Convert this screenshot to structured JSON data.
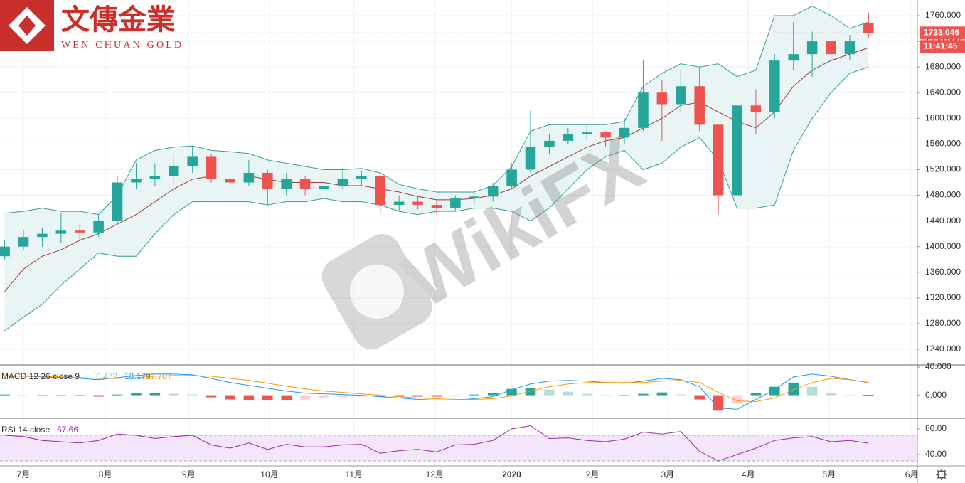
{
  "logo": {
    "name": "文傳金業",
    "subtitle": "WEN CHUAN GOLD"
  },
  "watermark": "WikiFX",
  "chart_data": [
    {
      "type": "candlestick",
      "x": [
        -1,
        0,
        1,
        2,
        3,
        4,
        5,
        6,
        7,
        8,
        9,
        10,
        11,
        12,
        13,
        14,
        15,
        16,
        17,
        18,
        19,
        20,
        21,
        22,
        23,
        24,
        25,
        26,
        27,
        28,
        29,
        30,
        31,
        32,
        33,
        34,
        35,
        36,
        37,
        38,
        39,
        40,
        41,
        42,
        43,
        44,
        45
      ],
      "open": [
        1385,
        1400,
        1415,
        1420,
        1425,
        1422,
        1440,
        1500,
        1505,
        1510,
        1525,
        1540,
        1505,
        1500,
        1515,
        1490,
        1505,
        1490,
        1495,
        1505,
        1510,
        1465,
        1470,
        1465,
        1460,
        1475,
        1478,
        1495,
        1520,
        1555,
        1565,
        1575,
        1578,
        1570,
        1585,
        1640,
        1622,
        1650,
        1590,
        1480,
        1620,
        1610,
        1690,
        1700,
        1720,
        1700,
        1748
      ],
      "high": [
        1410,
        1425,
        1430,
        1452,
        1435,
        1450,
        1510,
        1530,
        1530,
        1545,
        1557,
        1545,
        1515,
        1535,
        1520,
        1515,
        1510,
        1505,
        1520,
        1518,
        1512,
        1480,
        1478,
        1472,
        1480,
        1485,
        1500,
        1530,
        1612,
        1575,
        1585,
        1590,
        1580,
        1600,
        1690,
        1660,
        1675,
        1680,
        1590,
        1630,
        1645,
        1700,
        1750,
        1735,
        1725,
        1730,
        1765
      ],
      "low": [
        1380,
        1395,
        1400,
        1405,
        1410,
        1415,
        1435,
        1490,
        1495,
        1500,
        1515,
        1500,
        1480,
        1495,
        1465,
        1480,
        1480,
        1485,
        1490,
        1495,
        1450,
        1455,
        1458,
        1450,
        1455,
        1465,
        1470,
        1490,
        1515,
        1545,
        1560,
        1565,
        1555,
        1560,
        1580,
        1565,
        1610,
        1580,
        1450,
        1455,
        1575,
        1600,
        1675,
        1665,
        1680,
        1690,
        1725
      ],
      "close": [
        1400,
        1415,
        1420,
        1425,
        1422,
        1440,
        1500,
        1505,
        1510,
        1525,
        1540,
        1505,
        1500,
        1515,
        1490,
        1505,
        1490,
        1495,
        1505,
        1510,
        1465,
        1470,
        1465,
        1460,
        1475,
        1478,
        1495,
        1520,
        1555,
        1565,
        1575,
        1578,
        1570,
        1585,
        1640,
        1622,
        1650,
        1590,
        1480,
        1620,
        1610,
        1690,
        1700,
        1720,
        1700,
        1720,
        1733.046
      ],
      "bands": {
        "upper": [
          1452,
          1455,
          1460,
          1455,
          1455,
          1450,
          1480,
          1535,
          1550,
          1555,
          1557,
          1550,
          1548,
          1545,
          1535,
          1530,
          1525,
          1520,
          1520,
          1522,
          1515,
          1497,
          1490,
          1485,
          1485,
          1485,
          1495,
          1525,
          1580,
          1590,
          1590,
          1590,
          1590,
          1595,
          1650,
          1670,
          1685,
          1680,
          1685,
          1665,
          1675,
          1760,
          1760,
          1775,
          1760,
          1740,
          1750
        ],
        "middle": [
          1330,
          1365,
          1385,
          1395,
          1410,
          1420,
          1435,
          1450,
          1470,
          1490,
          1505,
          1510,
          1510,
          1510,
          1505,
          1500,
          1500,
          1500,
          1495,
          1495,
          1490,
          1485,
          1478,
          1473,
          1473,
          1475,
          1480,
          1490,
          1510,
          1525,
          1540,
          1555,
          1565,
          1570,
          1585,
          1600,
          1620,
          1625,
          1610,
          1595,
          1585,
          1610,
          1650,
          1675,
          1690,
          1700,
          1710
        ],
        "lower": [
          1269,
          1290,
          1310,
          1340,
          1365,
          1390,
          1385,
          1385,
          1420,
          1450,
          1470,
          1470,
          1470,
          1470,
          1465,
          1470,
          1470,
          1475,
          1470,
          1470,
          1465,
          1455,
          1450,
          1455,
          1455,
          1460,
          1460,
          1455,
          1440,
          1460,
          1490,
          1520,
          1540,
          1550,
          1520,
          1530,
          1555,
          1570,
          1535,
          1460,
          1460,
          1465,
          1550,
          1600,
          1640,
          1670,
          1680
        ]
      },
      "countdown": "11:41:45",
      "colors": {
        "up": "#26a69a",
        "down": "#ef5350",
        "band": "#3a9a9a",
        "middle": "#9c3c3c",
        "fill": "#e8f5f4",
        "price": "#ef5350"
      },
      "xlim": [
        -1.25,
        47.6
      ],
      "xticks": [
        {
          "value": 0,
          "label": "7月"
        },
        {
          "value": 4.36,
          "label": "8月"
        },
        {
          "value": 8.8,
          "label": "9月"
        },
        {
          "value": 13.1,
          "label": "10月"
        },
        {
          "value": 17.6,
          "label": "11月"
        },
        {
          "value": 21.9,
          "label": "12月"
        },
        {
          "value": 26,
          "label": "2020"
        },
        {
          "value": 30.3,
          "label": "2月"
        },
        {
          "value": 34.3,
          "label": "3月"
        },
        {
          "value": 38.6,
          "label": "4月"
        },
        {
          "value": 42.9,
          "label": "5月"
        },
        {
          "value": 47.3,
          "label": "6月"
        }
      ],
      "ylim": [
        1215.6,
        1784.4
      ],
      "yticks": [
        {
          "value": 1240,
          "label": "1240.000"
        },
        {
          "value": 1280,
          "label": "1280.000"
        },
        {
          "value": 1320,
          "label": "1320.000"
        },
        {
          "value": 1360,
          "label": "1360.000"
        },
        {
          "value": 1400,
          "label": "1400.000"
        },
        {
          "value": 1440,
          "label": "1440.000"
        },
        {
          "value": 1480,
          "label": "1480.000"
        },
        {
          "value": 1520,
          "label": "1520.000"
        },
        {
          "value": 1560,
          "label": "1560.000"
        },
        {
          "value": 1600,
          "label": "1600.000"
        },
        {
          "value": 1640,
          "label": "1640.000"
        },
        {
          "value": 1680,
          "label": "1680.000"
        },
        {
          "value": 1720,
          "label": "1720.000"
        },
        {
          "value": 1760,
          "label": "1760.000"
        }
      ],
      "grid": true
    },
    {
      "type": "macd",
      "title": "MACD 12 26 close 9",
      "histogram": [
        1,
        0,
        -1,
        -1,
        -1,
        -2,
        1,
        3,
        3,
        2,
        1,
        -3,
        -6,
        -7,
        -7,
        -7,
        -6,
        -4,
        -3,
        -2,
        -2,
        -2,
        -2,
        -2,
        -1,
        1,
        3,
        9,
        10,
        8,
        5,
        2,
        0,
        -1,
        2,
        4,
        1,
        -6,
        -22,
        -12,
        3,
        12,
        18,
        12,
        3,
        0,
        0.472
      ],
      "macd": [
        28,
        27,
        26,
        25,
        24,
        22,
        25,
        28,
        30,
        30,
        29,
        24,
        18,
        14,
        10,
        6,
        3,
        2,
        1,
        0,
        -2,
        -4,
        -6,
        -7,
        -7,
        -5,
        -2,
        8,
        16,
        20,
        21,
        20,
        18,
        17,
        20,
        24,
        22,
        12,
        -18,
        -20,
        -6,
        8,
        26,
        30,
        27,
        22,
        18.179
      ],
      "signal": [
        27,
        27,
        27,
        26,
        25,
        24,
        24,
        25,
        27,
        28,
        28,
        27,
        24,
        21,
        17,
        13,
        9,
        6,
        4,
        2,
        0,
        -2,
        -4,
        -5,
        -6,
        -6,
        -5,
        -1,
        6,
        12,
        16,
        18,
        18,
        18,
        18,
        20,
        21,
        18,
        4,
        -8,
        -9,
        -4,
        8,
        18,
        24,
        22,
        17.707
      ],
      "colors": {
        "macd": "#2196f3",
        "signal": "#ff9800",
        "up": "#26a69a",
        "up_fading": "#b2dfdb",
        "down": "#ef5350",
        "down_fading": "#ffcdd2",
        "histogram_label": "#8fd0c8"
      },
      "ylim": [
        -32.8,
        43.1
      ],
      "yticks": [
        {
          "value": 40,
          "label": "40.000"
        },
        {
          "value": 0,
          "label": "0.000"
        }
      ]
    },
    {
      "type": "rsi",
      "title": "RSI 14 close",
      "values": [
        70,
        68,
        62,
        60,
        58,
        62,
        72,
        70,
        65,
        68,
        70,
        55,
        50,
        58,
        48,
        56,
        52,
        52,
        55,
        56,
        42,
        46,
        48,
        44,
        55,
        56,
        62,
        80,
        85,
        65,
        66,
        62,
        60,
        64,
        75,
        72,
        76,
        45,
        30,
        40,
        50,
        62,
        66,
        68,
        60,
        62,
        57.66
      ],
      "band": [
        30,
        70
      ],
      "colors": {
        "line": "#9c27b0",
        "fill": "#f3e5fa"
      },
      "ylim": [
        22.2,
        96.7
      ],
      "yticks": [
        {
          "value": 80,
          "label": "80.00"
        },
        {
          "value": 40,
          "label": "40.00"
        }
      ]
    }
  ]
}
